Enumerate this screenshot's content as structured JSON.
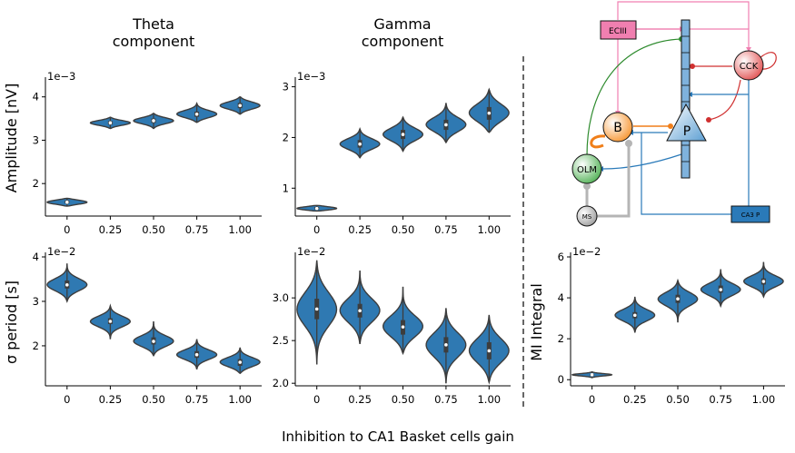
{
  "figure": {
    "xlabel": "Inhibition to CA1 Basket cells gain",
    "col_titles": [
      [
        "Theta",
        "component"
      ],
      [
        "Gamma",
        "component"
      ]
    ]
  },
  "style": {
    "violin_fill": "#2f79b2",
    "violin_edge": "#3d3d3d",
    "box_color": "#3d3d3d",
    "median_color": "#ffffff"
  },
  "chart_data": [
    {
      "id": "theta_amp",
      "type": "violin",
      "ylabel": "Amplitude [nV]",
      "offset_label": "1e−3",
      "categories": [
        "0",
        "0.25",
        "0.50",
        "0.75",
        "1.00"
      ],
      "ylim": [
        1.25,
        4.35
      ],
      "yticks": [
        2,
        3,
        4
      ],
      "series": [
        {
          "median": 1.57,
          "q1": 1.54,
          "q3": 1.61,
          "low": 1.48,
          "high": 1.66
        },
        {
          "median": 3.4,
          "q1": 3.36,
          "q3": 3.44,
          "low": 3.27,
          "high": 3.53
        },
        {
          "median": 3.45,
          "q1": 3.4,
          "q3": 3.5,
          "low": 3.27,
          "high": 3.62
        },
        {
          "median": 3.6,
          "q1": 3.54,
          "q3": 3.66,
          "low": 3.41,
          "high": 3.85
        },
        {
          "median": 3.8,
          "q1": 3.74,
          "q3": 3.86,
          "low": 3.6,
          "high": 4.0
        }
      ]
    },
    {
      "id": "gamma_amp",
      "type": "violin",
      "offset_label": "1e−3",
      "categories": [
        "0",
        "0.25",
        "0.50",
        "0.75",
        "1.00"
      ],
      "ylim": [
        0.45,
        3.1
      ],
      "yticks": [
        1,
        2,
        3
      ],
      "series": [
        {
          "median": 0.6,
          "q1": 0.58,
          "q3": 0.63,
          "low": 0.55,
          "high": 0.66
        },
        {
          "median": 1.87,
          "q1": 1.8,
          "q3": 1.95,
          "low": 1.6,
          "high": 2.17
        },
        {
          "median": 2.06,
          "q1": 1.97,
          "q3": 2.15,
          "low": 1.73,
          "high": 2.4
        },
        {
          "median": 2.25,
          "q1": 2.15,
          "q3": 2.35,
          "low": 1.9,
          "high": 2.68
        },
        {
          "median": 2.48,
          "q1": 2.35,
          "q3": 2.6,
          "low": 2.1,
          "high": 2.95
        }
      ]
    },
    {
      "id": "theta_sigma",
      "type": "violin",
      "ylabel": "σ period [s]",
      "offset_label": "1e−2",
      "categories": [
        "0",
        "0.25",
        "0.50",
        "0.75",
        "1.00"
      ],
      "ylim": [
        1.1,
        4.0
      ],
      "yticks": [
        2,
        3,
        4
      ],
      "series": [
        {
          "median": 3.37,
          "q1": 3.29,
          "q3": 3.47,
          "low": 3.0,
          "high": 3.85
        },
        {
          "median": 2.55,
          "q1": 2.49,
          "q3": 2.62,
          "low": 2.15,
          "high": 2.9
        },
        {
          "median": 2.1,
          "q1": 2.03,
          "q3": 2.19,
          "low": 1.78,
          "high": 2.55
        },
        {
          "median": 1.8,
          "q1": 1.73,
          "q3": 1.88,
          "low": 1.47,
          "high": 2.15
        },
        {
          "median": 1.63,
          "q1": 1.55,
          "q3": 1.7,
          "low": 1.38,
          "high": 1.96
        }
      ]
    },
    {
      "id": "gamma_sigma",
      "type": "violin",
      "offset_label": "1e−2",
      "categories": [
        "0",
        "0.25",
        "0.50",
        "0.75",
        "1.00"
      ],
      "ylim": [
        1.97,
        3.48
      ],
      "yticks": [
        2.0,
        2.5,
        3.0
      ],
      "series": [
        {
          "median": 2.87,
          "q1": 2.75,
          "q3": 2.99,
          "low": 2.22,
          "high": 3.44
        },
        {
          "median": 2.85,
          "q1": 2.77,
          "q3": 2.93,
          "low": 2.46,
          "high": 3.32
        },
        {
          "median": 2.66,
          "q1": 2.57,
          "q3": 2.74,
          "low": 2.35,
          "high": 3.13
        },
        {
          "median": 2.45,
          "q1": 2.36,
          "q3": 2.54,
          "low": 2.0,
          "high": 2.88
        },
        {
          "median": 2.38,
          "q1": 2.28,
          "q3": 2.48,
          "low": 2.01,
          "high": 2.8
        }
      ]
    },
    {
      "id": "mi_integral",
      "type": "violin",
      "ylabel": "MI Integral",
      "offset_label": "1e−2",
      "categories": [
        "0",
        "0.25",
        "0.50",
        "0.75",
        "1.00"
      ],
      "ylim": [
        -0.3,
        6.0
      ],
      "yticks": [
        0,
        2,
        4,
        6
      ],
      "series": [
        {
          "median": 0.24,
          "q1": 0.2,
          "q3": 0.28,
          "low": 0.1,
          "high": 0.38
        },
        {
          "median": 3.15,
          "q1": 3.0,
          "q3": 3.3,
          "low": 2.3,
          "high": 4.05
        },
        {
          "median": 3.95,
          "q1": 3.75,
          "q3": 4.15,
          "low": 2.8,
          "high": 4.85
        },
        {
          "median": 4.4,
          "q1": 4.25,
          "q3": 4.6,
          "low": 3.6,
          "high": 5.4
        },
        {
          "median": 4.8,
          "q1": 4.65,
          "q3": 4.95,
          "low": 4.05,
          "high": 5.75
        }
      ]
    }
  ],
  "diagram": {
    "nodes": {
      "ec": "ECIII",
      "cck": "CCK",
      "basket": "B",
      "pyramidal": "P",
      "olm": "OLM",
      "ms": "MS",
      "ca3": "CA3 P"
    },
    "colors": {
      "ec": "#f07fb0",
      "cck": "#e04c4c",
      "basket": "#f7922a",
      "pyramidal": "#9ec4e4",
      "olm": "#4caf50",
      "ms": "#a8a8a8",
      "ca3": "#2a7ab9",
      "green_edge": "#2e8b2e",
      "red_edge": "#d03030",
      "orange_edge": "#f07f1a",
      "blue_edge": "#2a7ab9",
      "gray_edge": "#b5b5b5"
    }
  }
}
